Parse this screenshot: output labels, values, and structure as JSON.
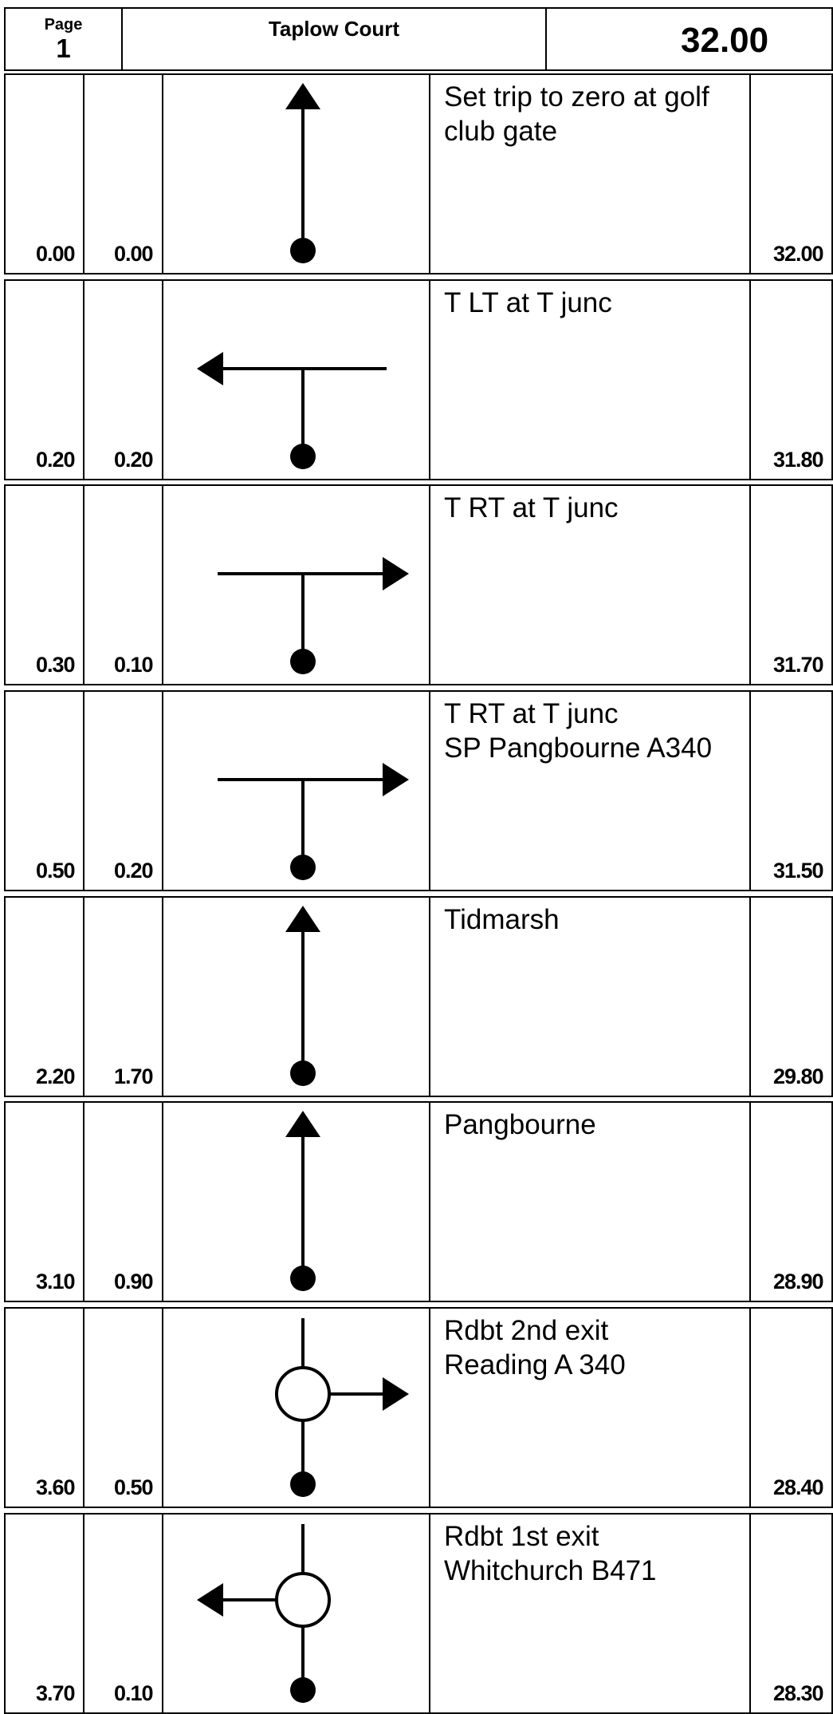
{
  "header": {
    "page_label": "Page",
    "page_number": "1",
    "title": "Taplow Court",
    "total": "32.00"
  },
  "rows": [
    {
      "cum": "0.00",
      "interval": "0.00",
      "diagram": "straight-ahead-arrow-icon",
      "instruction": "Set trip to zero at golf\nclub gate",
      "remaining": "32.00"
    },
    {
      "cum": "0.20",
      "interval": "0.20",
      "diagram": "t-junction-left-icon",
      "instruction": "T LT at T junc",
      "remaining": "31.80"
    },
    {
      "cum": "0.30",
      "interval": "0.10",
      "diagram": "t-junction-right-icon",
      "instruction": "T RT at T junc",
      "remaining": "31.70"
    },
    {
      "cum": "0.50",
      "interval": "0.20",
      "diagram": "t-junction-right-icon",
      "instruction": "T RT at T junc\nSP Pangbourne A340",
      "remaining": "31.50"
    },
    {
      "cum": "2.20",
      "interval": "1.70",
      "diagram": "straight-ahead-arrow-icon",
      "instruction": "Tidmarsh",
      "remaining": "29.80"
    },
    {
      "cum": "3.10",
      "interval": "0.90",
      "diagram": "straight-ahead-arrow-icon",
      "instruction": "Pangbourne",
      "remaining": "28.90"
    },
    {
      "cum": "3.60",
      "interval": "0.50",
      "diagram": "roundabout-right-exit-icon",
      "instruction": "Rdbt 2nd exit\nReading A 340",
      "remaining": "28.40"
    },
    {
      "cum": "3.70",
      "interval": "0.10",
      "diagram": "roundabout-left-exit-icon",
      "instruction": "Rdbt 1st exit\nWhitchurch B471",
      "remaining": "28.30"
    }
  ]
}
